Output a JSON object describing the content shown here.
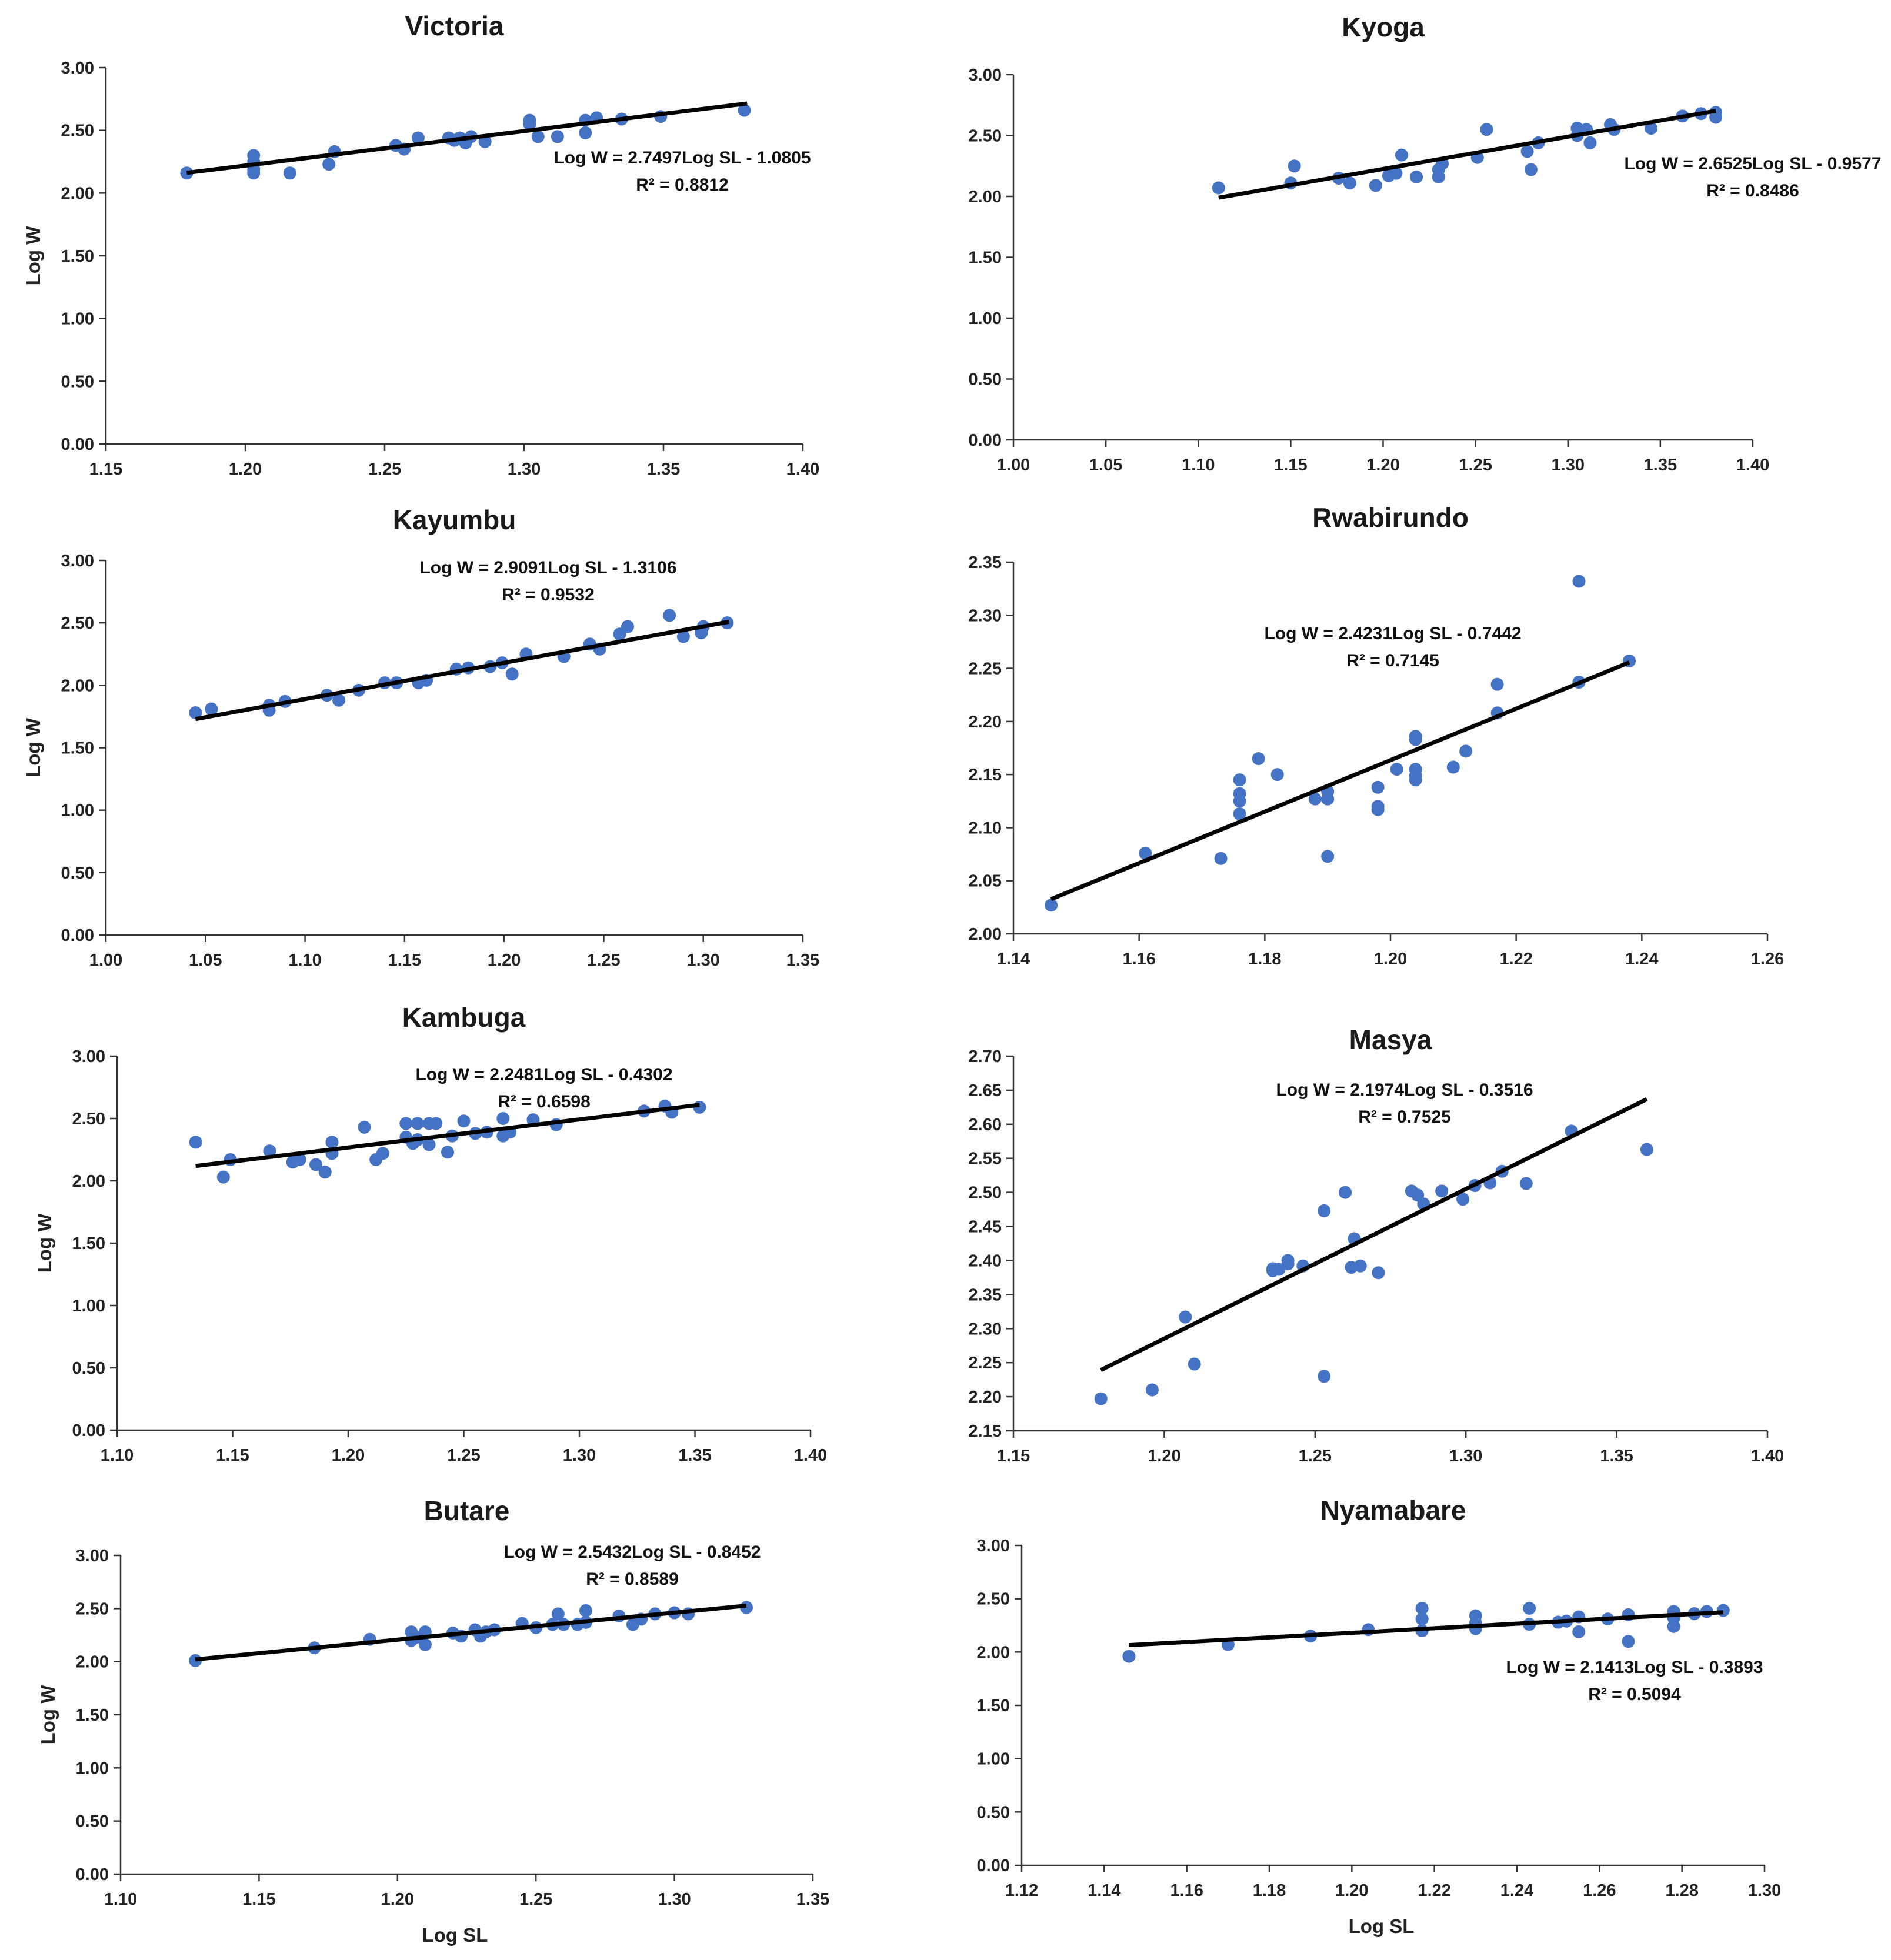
{
  "chart_data": [
    {
      "type": "scatter",
      "title": "Victoria",
      "xlabel": "",
      "ylabel": "Log W",
      "xlim": [
        1.15,
        1.4
      ],
      "xticks": [
        1.15,
        1.2,
        1.25,
        1.3,
        1.35,
        1.4
      ],
      "ylim": [
        0.0,
        3.0
      ],
      "yticks": [
        0.0,
        0.5,
        1.0,
        1.5,
        2.0,
        2.5,
        3.0
      ],
      "equation": "Log W = 2.7497Log SL - 1.0805",
      "r2": "R² = 0.8812",
      "slope": 2.7497,
      "intercept": -1.0805,
      "fit_x": [
        1.179,
        1.38
      ],
      "points": [
        [
          1.179,
          2.16
        ],
        [
          1.203,
          2.3
        ],
        [
          1.203,
          2.25
        ],
        [
          1.203,
          2.19
        ],
        [
          1.203,
          2.16
        ],
        [
          1.216,
          2.16
        ],
        [
          1.23,
          2.23
        ],
        [
          1.232,
          2.33
        ],
        [
          1.254,
          2.38
        ],
        [
          1.257,
          2.35
        ],
        [
          1.262,
          2.44
        ],
        [
          1.273,
          2.44
        ],
        [
          1.275,
          2.42
        ],
        [
          1.277,
          2.44
        ],
        [
          1.279,
          2.4
        ],
        [
          1.281,
          2.45
        ],
        [
          1.286,
          2.41
        ],
        [
          1.302,
          2.58
        ],
        [
          1.302,
          2.55
        ],
        [
          1.305,
          2.45
        ],
        [
          1.312,
          2.45
        ],
        [
          1.322,
          2.58
        ],
        [
          1.322,
          2.48
        ],
        [
          1.326,
          2.6
        ],
        [
          1.335,
          2.59
        ],
        [
          1.349,
          2.61
        ],
        [
          1.379,
          2.66
        ]
      ]
    },
    {
      "type": "scatter",
      "title": "Kyoga",
      "xlabel": "",
      "ylabel": "",
      "xlim": [
        1.0,
        1.4
      ],
      "xticks": [
        1.0,
        1.05,
        1.1,
        1.15,
        1.2,
        1.25,
        1.3,
        1.35,
        1.4
      ],
      "ylim": [
        0.0,
        3.0
      ],
      "yticks": [
        0.0,
        0.5,
        1.0,
        1.5,
        2.0,
        2.5,
        3.0
      ],
      "equation": "Log W = 2.6525Log SL - 0.9577",
      "r2": "R² = 0.8486",
      "slope": 2.6525,
      "intercept": -0.9577,
      "fit_x": [
        1.111,
        1.38
      ],
      "points": [
        [
          1.111,
          2.07
        ],
        [
          1.15,
          2.11
        ],
        [
          1.152,
          2.25
        ],
        [
          1.176,
          2.15
        ],
        [
          1.182,
          2.11
        ],
        [
          1.196,
          2.09
        ],
        [
          1.203,
          2.17
        ],
        [
          1.207,
          2.19
        ],
        [
          1.21,
          2.34
        ],
        [
          1.218,
          2.16
        ],
        [
          1.23,
          2.16
        ],
        [
          1.23,
          2.22
        ],
        [
          1.232,
          2.27
        ],
        [
          1.251,
          2.32
        ],
        [
          1.256,
          2.55
        ],
        [
          1.278,
          2.37
        ],
        [
          1.28,
          2.22
        ],
        [
          1.284,
          2.44
        ],
        [
          1.305,
          2.56
        ],
        [
          1.305,
          2.5
        ],
        [
          1.31,
          2.55
        ],
        [
          1.312,
          2.44
        ],
        [
          1.323,
          2.59
        ],
        [
          1.325,
          2.55
        ],
        [
          1.345,
          2.56
        ],
        [
          1.362,
          2.66
        ],
        [
          1.372,
          2.68
        ],
        [
          1.38,
          2.69
        ],
        [
          1.38,
          2.65
        ]
      ]
    },
    {
      "type": "scatter",
      "title": "Kayumbu",
      "xlabel": "",
      "ylabel": "Log W",
      "xlim": [
        1.0,
        1.35
      ],
      "xticks": [
        1.0,
        1.05,
        1.1,
        1.15,
        1.2,
        1.25,
        1.3,
        1.35
      ],
      "ylim": [
        0.0,
        3.0
      ],
      "yticks": [
        0.0,
        0.5,
        1.0,
        1.5,
        2.0,
        2.5,
        3.0
      ],
      "equation": "Log W = 2.9091Log SL - 1.3106",
      "r2": "R² = 0.9532",
      "slope": 2.9091,
      "intercept": -1.3106,
      "fit_x": [
        1.045,
        1.313
      ],
      "points": [
        [
          1.045,
          1.78
        ],
        [
          1.053,
          1.81
        ],
        [
          1.082,
          1.84
        ],
        [
          1.082,
          1.8
        ],
        [
          1.09,
          1.87
        ],
        [
          1.111,
          1.92
        ],
        [
          1.117,
          1.88
        ],
        [
          1.127,
          1.96
        ],
        [
          1.14,
          2.02
        ],
        [
          1.146,
          2.02
        ],
        [
          1.157,
          2.02
        ],
        [
          1.161,
          2.04
        ],
        [
          1.176,
          2.13
        ],
        [
          1.182,
          2.14
        ],
        [
          1.193,
          2.15
        ],
        [
          1.199,
          2.18
        ],
        [
          1.204,
          2.09
        ],
        [
          1.211,
          2.25
        ],
        [
          1.23,
          2.23
        ],
        [
          1.243,
          2.33
        ],
        [
          1.248,
          2.29
        ],
        [
          1.258,
          2.41
        ],
        [
          1.262,
          2.47
        ],
        [
          1.283,
          2.56
        ],
        [
          1.29,
          2.39
        ],
        [
          1.299,
          2.42
        ],
        [
          1.3,
          2.47
        ],
        [
          1.312,
          2.5
        ]
      ]
    },
    {
      "type": "scatter",
      "title": "Rwabirundo",
      "xlabel": "",
      "ylabel": "",
      "xlim": [
        1.14,
        1.26
      ],
      "xticks": [
        1.14,
        1.16,
        1.18,
        1.2,
        1.22,
        1.24,
        1.26
      ],
      "ylim": [
        2.0,
        2.35
      ],
      "yticks": [
        2.0,
        2.05,
        2.1,
        2.15,
        2.2,
        2.25,
        2.3,
        2.35
      ],
      "equation": "Log W = 2.4231Log SL - 0.7442",
      "r2": "R² = 0.7145",
      "slope": 2.4231,
      "intercept": -0.7442,
      "fit_x": [
        1.146,
        1.238
      ],
      "points": [
        [
          1.146,
          2.027
        ],
        [
          1.161,
          2.076
        ],
        [
          1.173,
          2.071
        ],
        [
          1.176,
          2.145
        ],
        [
          1.176,
          2.132
        ],
        [
          1.176,
          2.125
        ],
        [
          1.176,
          2.113
        ],
        [
          1.179,
          2.165
        ],
        [
          1.182,
          2.15
        ],
        [
          1.188,
          2.127
        ],
        [
          1.19,
          2.134
        ],
        [
          1.19,
          2.127
        ],
        [
          1.19,
          2.073
        ],
        [
          1.198,
          2.138
        ],
        [
          1.198,
          2.12
        ],
        [
          1.198,
          2.117
        ],
        [
          1.201,
          2.155
        ],
        [
          1.204,
          2.186
        ],
        [
          1.204,
          2.183
        ],
        [
          1.204,
          2.155
        ],
        [
          1.204,
          2.149
        ],
        [
          1.204,
          2.145
        ],
        [
          1.21,
          2.157
        ],
        [
          1.212,
          2.172
        ],
        [
          1.217,
          2.235
        ],
        [
          1.217,
          2.208
        ],
        [
          1.23,
          2.332
        ],
        [
          1.23,
          2.237
        ],
        [
          1.238,
          2.257
        ]
      ]
    },
    {
      "type": "scatter",
      "title": "Kambuga",
      "xlabel": "",
      "ylabel": "Log W",
      "xlim": [
        1.1,
        1.4
      ],
      "xticks": [
        1.1,
        1.15,
        1.2,
        1.25,
        1.3,
        1.35,
        1.4
      ],
      "ylim": [
        0.0,
        3.0
      ],
      "yticks": [
        0.0,
        0.5,
        1.0,
        1.5,
        2.0,
        2.5,
        3.0
      ],
      "equation": "Log W = 2.2481Log SL - 0.4302",
      "r2": "R² = 0.6598",
      "slope": 2.2481,
      "intercept": -0.4302,
      "fit_x": [
        1.134,
        1.352
      ],
      "points": [
        [
          1.134,
          2.31
        ],
        [
          1.146,
          2.03
        ],
        [
          1.149,
          2.17
        ],
        [
          1.166,
          2.24
        ],
        [
          1.176,
          2.15
        ],
        [
          1.179,
          2.17
        ],
        [
          1.186,
          2.13
        ],
        [
          1.19,
          2.07
        ],
        [
          1.193,
          2.31
        ],
        [
          1.193,
          2.22
        ],
        [
          1.207,
          2.43
        ],
        [
          1.212,
          2.17
        ],
        [
          1.215,
          2.22
        ],
        [
          1.225,
          2.46
        ],
        [
          1.225,
          2.35
        ],
        [
          1.228,
          2.3
        ],
        [
          1.23,
          2.46
        ],
        [
          1.23,
          2.33
        ],
        [
          1.235,
          2.46
        ],
        [
          1.235,
          2.29
        ],
        [
          1.238,
          2.46
        ],
        [
          1.243,
          2.23
        ],
        [
          1.245,
          2.36
        ],
        [
          1.25,
          2.48
        ],
        [
          1.255,
          2.38
        ],
        [
          1.26,
          2.39
        ],
        [
          1.267,
          2.5
        ],
        [
          1.267,
          2.36
        ],
        [
          1.27,
          2.39
        ],
        [
          1.28,
          2.49
        ],
        [
          1.29,
          2.45
        ],
        [
          1.328,
          2.56
        ],
        [
          1.337,
          2.6
        ],
        [
          1.34,
          2.55
        ],
        [
          1.352,
          2.59
        ]
      ]
    },
    {
      "type": "scatter",
      "title": "Masya",
      "xlabel": "",
      "ylabel": "",
      "xlim": [
        1.15,
        1.4
      ],
      "xticks": [
        1.15,
        1.2,
        1.25,
        1.3,
        1.35,
        1.4
      ],
      "ylim": [
        2.15,
        2.7
      ],
      "yticks": [
        2.15,
        2.2,
        2.25,
        2.3,
        2.35,
        2.4,
        2.45,
        2.5,
        2.55,
        2.6,
        2.65,
        2.7
      ],
      "equation": "Log W = 2.1974Log SL - 0.3516",
      "r2": "R² = 0.7525",
      "slope": 2.1974,
      "intercept": -0.3516,
      "fit_x": [
        1.179,
        1.36
      ],
      "points": [
        [
          1.179,
          2.197
        ],
        [
          1.196,
          2.21
        ],
        [
          1.207,
          2.317
        ],
        [
          1.21,
          2.248
        ],
        [
          1.236,
          2.388
        ],
        [
          1.236,
          2.385
        ],
        [
          1.238,
          2.387
        ],
        [
          1.241,
          2.395
        ],
        [
          1.241,
          2.4
        ],
        [
          1.246,
          2.392
        ],
        [
          1.253,
          2.473
        ],
        [
          1.253,
          2.23
        ],
        [
          1.26,
          2.5
        ],
        [
          1.262,
          2.39
        ],
        [
          1.263,
          2.432
        ],
        [
          1.265,
          2.392
        ],
        [
          1.271,
          2.382
        ],
        [
          1.282,
          2.502
        ],
        [
          1.284,
          2.496
        ],
        [
          1.286,
          2.483
        ],
        [
          1.292,
          2.502
        ],
        [
          1.299,
          2.49
        ],
        [
          1.303,
          2.51
        ],
        [
          1.308,
          2.514
        ],
        [
          1.312,
          2.531
        ],
        [
          1.32,
          2.513
        ],
        [
          1.335,
          2.59
        ],
        [
          1.36,
          2.563
        ]
      ]
    },
    {
      "type": "scatter",
      "title": "Butare",
      "xlabel": "Log SL",
      "ylabel": "Log W",
      "xlim": [
        1.1,
        1.35
      ],
      "xticks": [
        1.1,
        1.15,
        1.2,
        1.25,
        1.3,
        1.35
      ],
      "ylim": [
        0.0,
        3.0
      ],
      "yticks": [
        0.0,
        0.5,
        1.0,
        1.5,
        2.0,
        2.5,
        3.0
      ],
      "equation": "Log W = 2.5432Log SL - 0.8452",
      "r2": "R² = 0.8589",
      "slope": 2.5432,
      "intercept": -0.8452,
      "fit_x": [
        1.127,
        1.326
      ],
      "points": [
        [
          1.127,
          2.01
        ],
        [
          1.17,
          2.13
        ],
        [
          1.19,
          2.21
        ],
        [
          1.205,
          2.28
        ],
        [
          1.205,
          2.2
        ],
        [
          1.207,
          2.23
        ],
        [
          1.21,
          2.28
        ],
        [
          1.21,
          2.16
        ],
        [
          1.22,
          2.27
        ],
        [
          1.223,
          2.24
        ],
        [
          1.228,
          2.3
        ],
        [
          1.23,
          2.24
        ],
        [
          1.232,
          2.28
        ],
        [
          1.235,
          2.3
        ],
        [
          1.245,
          2.36
        ],
        [
          1.25,
          2.32
        ],
        [
          1.256,
          2.35
        ],
        [
          1.258,
          2.45
        ],
        [
          1.26,
          2.35
        ],
        [
          1.265,
          2.35
        ],
        [
          1.268,
          2.48
        ],
        [
          1.268,
          2.37
        ],
        [
          1.28,
          2.43
        ],
        [
          1.285,
          2.35
        ],
        [
          1.288,
          2.4
        ],
        [
          1.293,
          2.45
        ],
        [
          1.3,
          2.46
        ],
        [
          1.305,
          2.45
        ],
        [
          1.326,
          2.51
        ]
      ]
    },
    {
      "type": "scatter",
      "title": "Nyamabare",
      "xlabel": "Log  SL",
      "ylabel": "",
      "xlim": [
        1.12,
        1.3
      ],
      "xticks": [
        1.12,
        1.14,
        1.16,
        1.18,
        1.2,
        1.22,
        1.24,
        1.26,
        1.28,
        1.3
      ],
      "ylim": [
        0.0,
        3.0
      ],
      "yticks": [
        0.0,
        0.5,
        1.0,
        1.5,
        2.0,
        2.5,
        3.0
      ],
      "equation": "Log W = 2.1413Log SL - 0.3893",
      "r2": "R² = 0.5094",
      "slope": 2.1413,
      "intercept": -0.3893,
      "fit_x": [
        1.146,
        1.29
      ],
      "points": [
        [
          1.146,
          1.96
        ],
        [
          1.17,
          2.07
        ],
        [
          1.19,
          2.15
        ],
        [
          1.204,
          2.21
        ],
        [
          1.217,
          2.41
        ],
        [
          1.217,
          2.31
        ],
        [
          1.217,
          2.2
        ],
        [
          1.23,
          2.34
        ],
        [
          1.23,
          2.27
        ],
        [
          1.23,
          2.22
        ],
        [
          1.243,
          2.41
        ],
        [
          1.243,
          2.26
        ],
        [
          1.25,
          2.28
        ],
        [
          1.252,
          2.29
        ],
        [
          1.255,
          2.33
        ],
        [
          1.255,
          2.19
        ],
        [
          1.262,
          2.31
        ],
        [
          1.267,
          2.35
        ],
        [
          1.267,
          2.1
        ],
        [
          1.278,
          2.38
        ],
        [
          1.278,
          2.32
        ],
        [
          1.278,
          2.24
        ],
        [
          1.283,
          2.36
        ],
        [
          1.286,
          2.38
        ],
        [
          1.29,
          2.39
        ]
      ]
    }
  ]
}
